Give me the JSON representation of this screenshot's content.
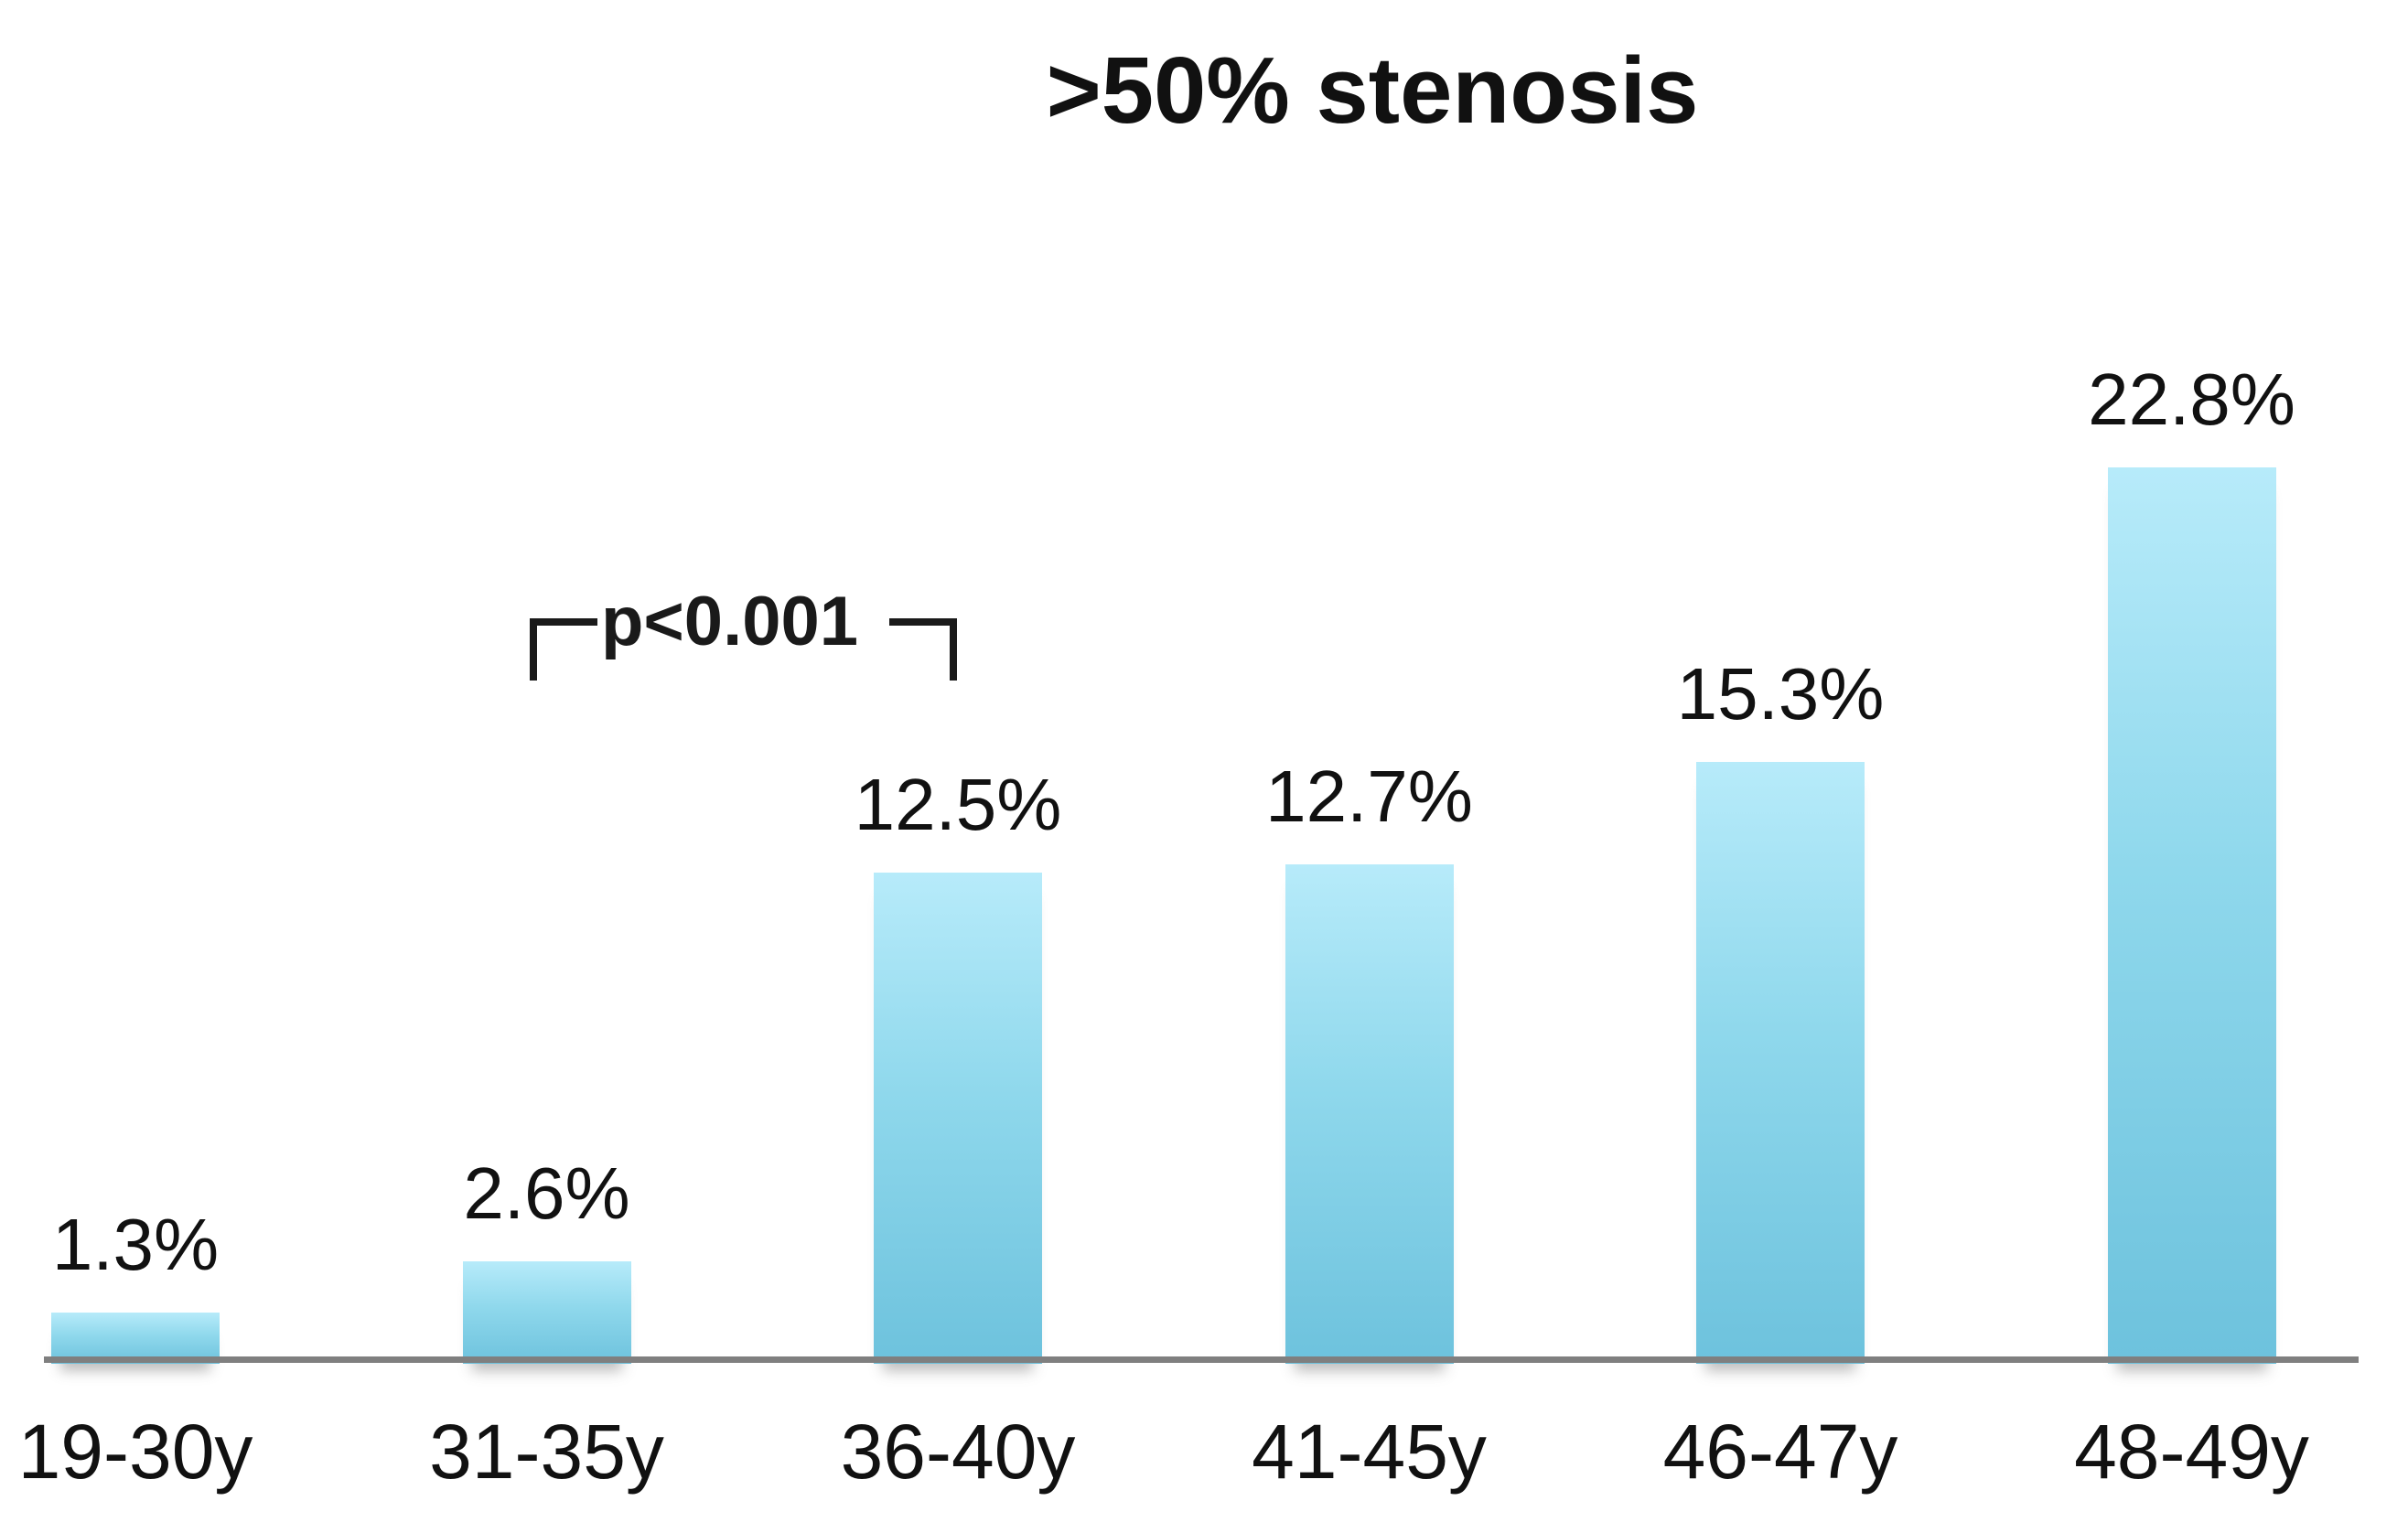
{
  "title": ">50% stenosis",
  "annotation": {
    "p_value_label": "p<0.001",
    "connects": [
      "31-35y",
      "36-40y"
    ]
  },
  "colors": {
    "bar_gradient_top": "#b7ebfa",
    "bar_gradient_bottom": "#6dc2dd",
    "axis_line": "#7f7f7f",
    "text": "#111111"
  },
  "chart_data": {
    "type": "bar",
    "title": ">50% stenosis",
    "categories": [
      "19-30y",
      "31-35y",
      "36-40y",
      "41-45y",
      "46-47y",
      "48-49y"
    ],
    "values": [
      1.3,
      2.6,
      12.5,
      12.7,
      15.3,
      22.8
    ],
    "value_labels": [
      "1.3%",
      "2.6%",
      "12.5%",
      "12.7%",
      "15.3%",
      "22.8%"
    ],
    "xlabel": "",
    "ylabel": "",
    "ylim": [
      0,
      25
    ],
    "grid": false,
    "legend": "none",
    "y_axis_visible": false,
    "annotations": [
      {
        "text": "p<0.001",
        "between": [
          "31-35y",
          "36-40y"
        ]
      }
    ]
  }
}
